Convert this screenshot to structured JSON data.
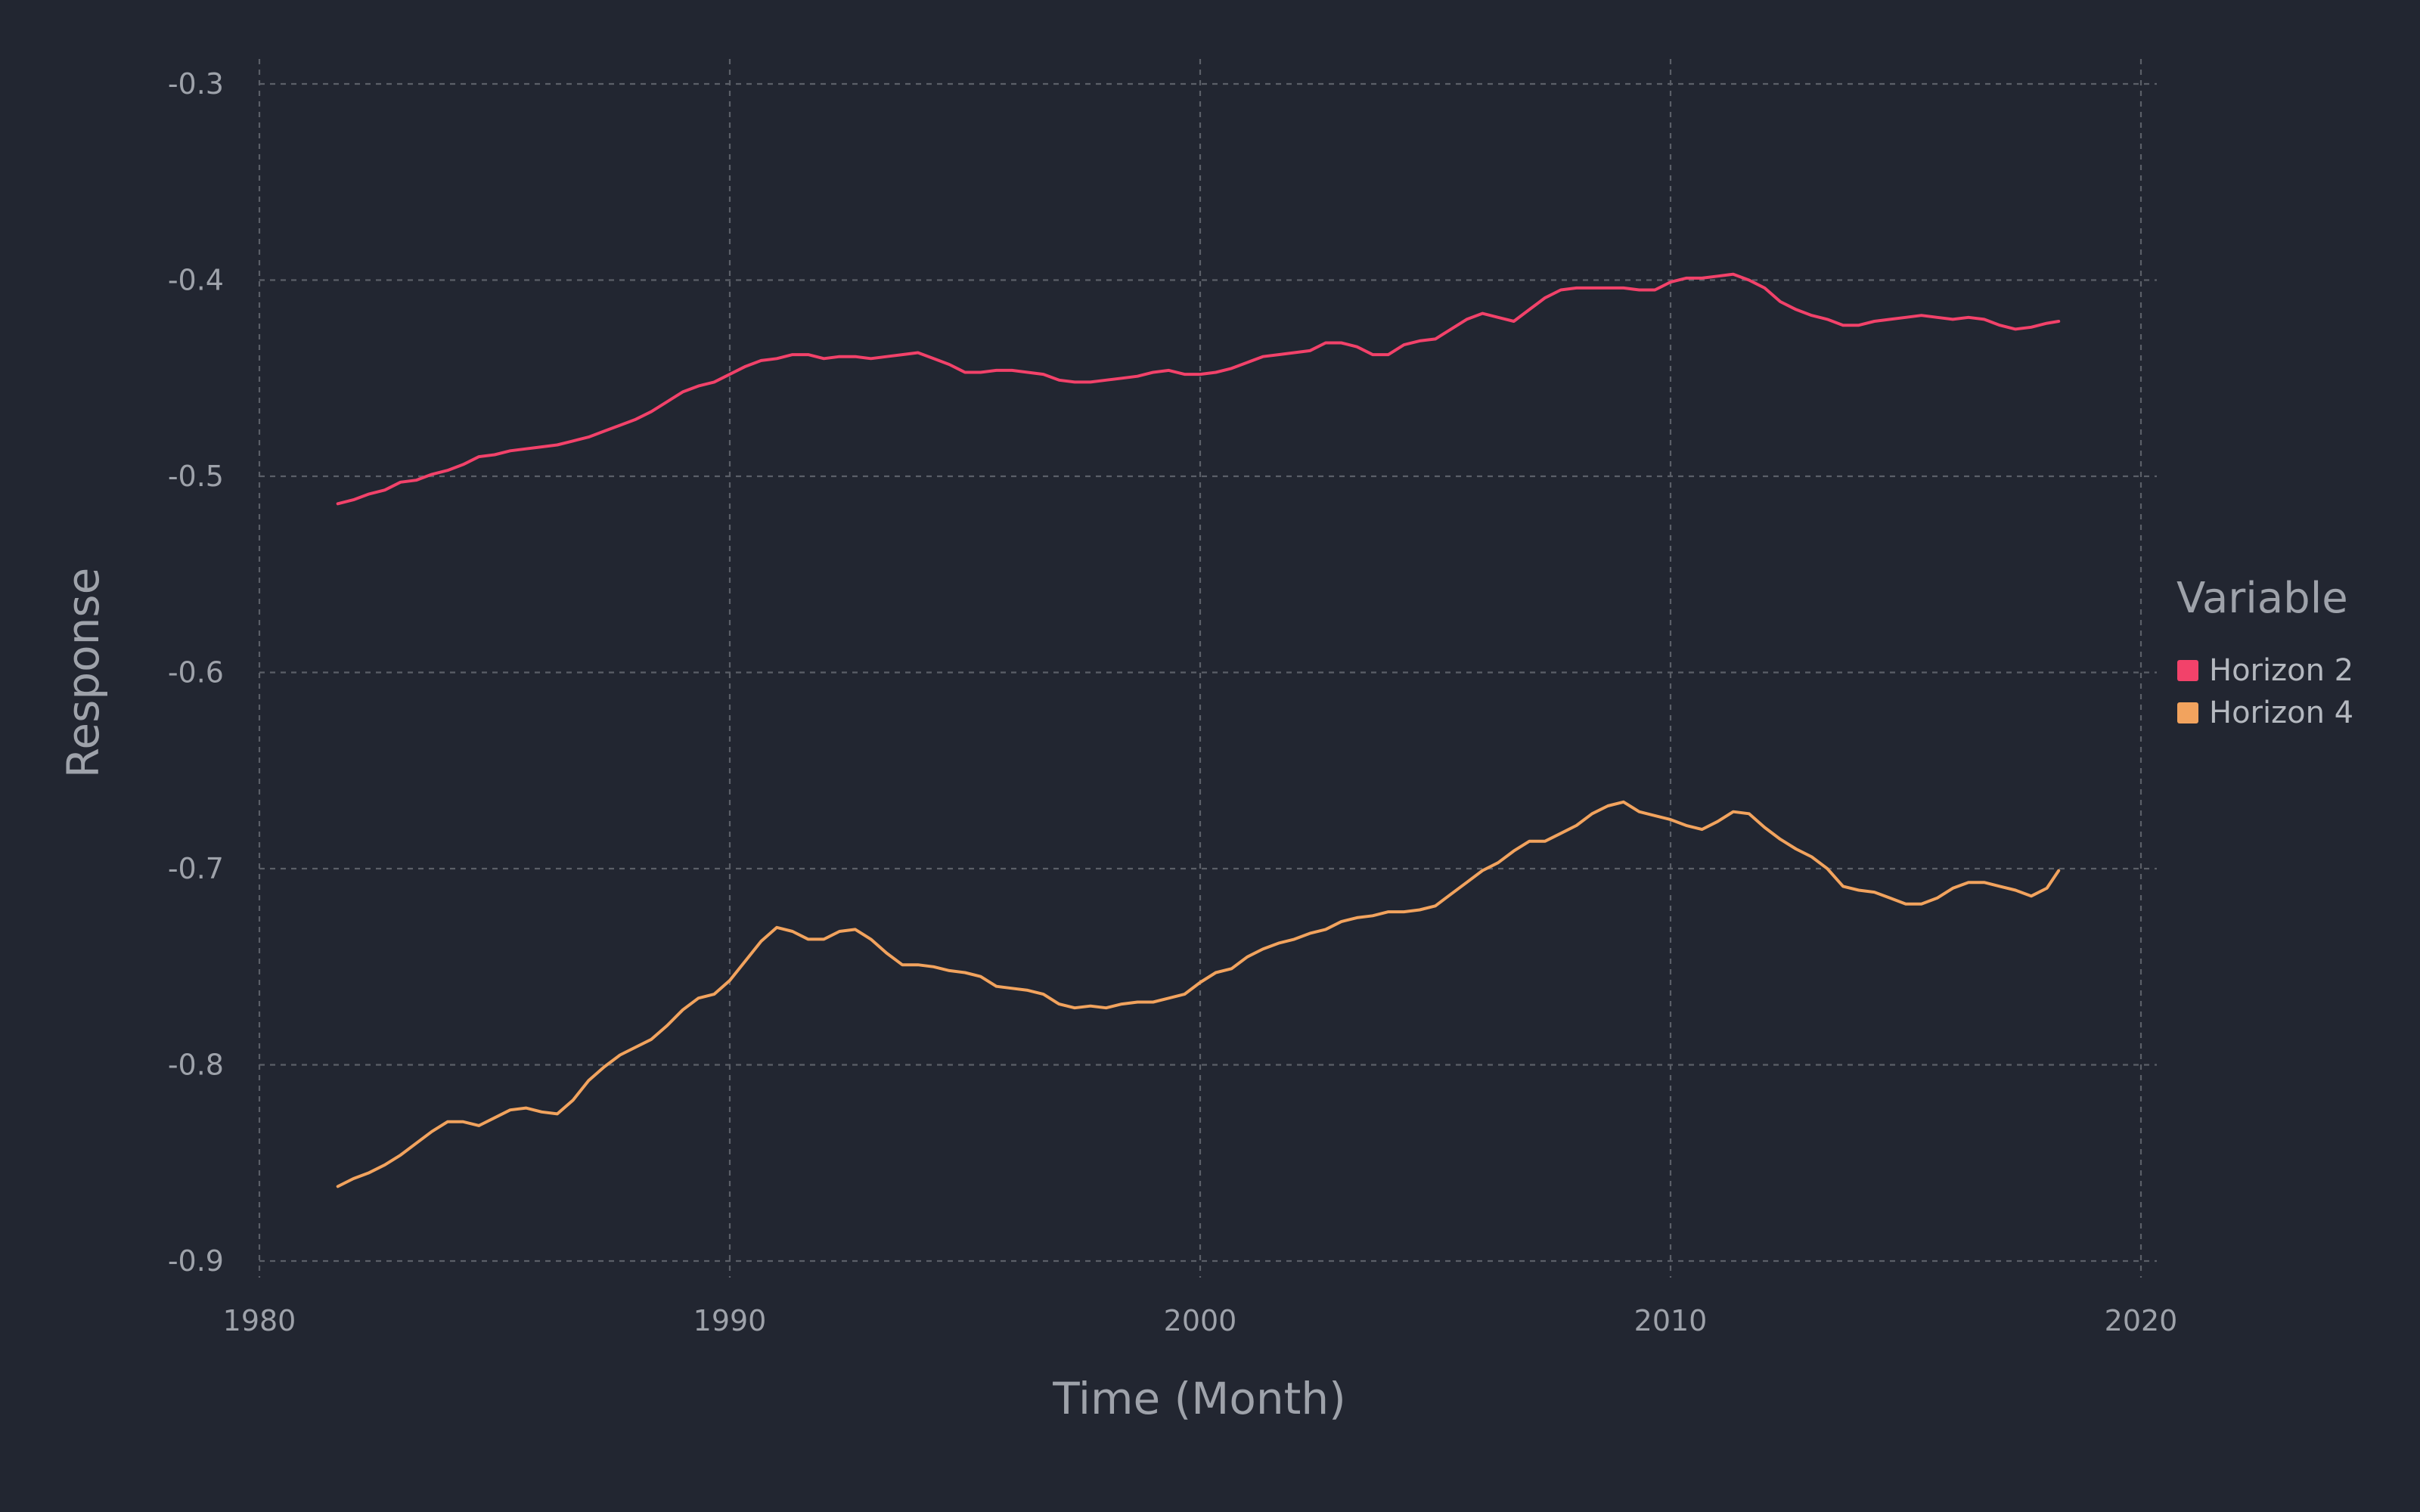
{
  "chart_data": {
    "type": "line",
    "xlabel": "Time (Month)",
    "ylabel": "Response",
    "xlim": [
      1980,
      2020
    ],
    "ylim": [
      -0.9,
      -0.3
    ],
    "x_ticks": [
      "1980",
      "1990",
      "2000",
      "2010",
      "2020"
    ],
    "y_ticks": [
      "-0.3",
      "-0.4",
      "-0.5",
      "-0.6",
      "-0.7",
      "-0.8",
      "-0.9"
    ],
    "grid": true,
    "legend": {
      "title": "Variable",
      "placement": "right"
    },
    "background": "#222631",
    "series": [
      {
        "name": "Horizon 2",
        "color": "#f2426a",
        "points": [
          [
            "1981-09",
            -0.514
          ],
          [
            "1982-01",
            -0.512
          ],
          [
            "1982-05",
            -0.509
          ],
          [
            "1982-09",
            -0.507
          ],
          [
            "1983-01",
            -0.503
          ],
          [
            "1983-05",
            -0.502
          ],
          [
            "1983-09",
            -0.499
          ],
          [
            "1984-01",
            -0.497
          ],
          [
            "1984-05",
            -0.494
          ],
          [
            "1984-09",
            -0.49
          ],
          [
            "1985-01",
            -0.489
          ],
          [
            "1985-05",
            -0.487
          ],
          [
            "1985-09",
            -0.486
          ],
          [
            "1986-01",
            -0.485
          ],
          [
            "1986-05",
            -0.484
          ],
          [
            "1986-09",
            -0.482
          ],
          [
            "1987-01",
            -0.48
          ],
          [
            "1987-05",
            -0.477
          ],
          [
            "1987-09",
            -0.474
          ],
          [
            "1988-01",
            -0.471
          ],
          [
            "1988-05",
            -0.467
          ],
          [
            "1988-09",
            -0.462
          ],
          [
            "1989-01",
            -0.457
          ],
          [
            "1989-05",
            -0.454
          ],
          [
            "1989-09",
            -0.452
          ],
          [
            "1990-01",
            -0.448
          ],
          [
            "1990-05",
            -0.444
          ],
          [
            "1990-09",
            -0.441
          ],
          [
            "1991-01",
            -0.44
          ],
          [
            "1991-05",
            -0.438
          ],
          [
            "1991-09",
            -0.438
          ],
          [
            "1992-01",
            -0.44
          ],
          [
            "1992-05",
            -0.439
          ],
          [
            "1992-09",
            -0.439
          ],
          [
            "1993-01",
            -0.44
          ],
          [
            "1993-05",
            -0.439
          ],
          [
            "1993-09",
            -0.438
          ],
          [
            "1994-01",
            -0.437
          ],
          [
            "1994-05",
            -0.44
          ],
          [
            "1994-09",
            -0.443
          ],
          [
            "1995-01",
            -0.447
          ],
          [
            "1995-05",
            -0.447
          ],
          [
            "1995-09",
            -0.446
          ],
          [
            "1996-01",
            -0.446
          ],
          [
            "1996-05",
            -0.447
          ],
          [
            "1996-09",
            -0.448
          ],
          [
            "1997-01",
            -0.451
          ],
          [
            "1997-05",
            -0.452
          ],
          [
            "1997-09",
            -0.452
          ],
          [
            "1998-01",
            -0.451
          ],
          [
            "1998-05",
            -0.45
          ],
          [
            "1998-09",
            -0.449
          ],
          [
            "1999-01",
            -0.447
          ],
          [
            "1999-05",
            -0.446
          ],
          [
            "1999-09",
            -0.448
          ],
          [
            "2000-01",
            -0.448
          ],
          [
            "2000-05",
            -0.447
          ],
          [
            "2000-09",
            -0.445
          ],
          [
            "2001-01",
            -0.442
          ],
          [
            "2001-05",
            -0.439
          ],
          [
            "2001-09",
            -0.438
          ],
          [
            "2002-01",
            -0.437
          ],
          [
            "2002-05",
            -0.436
          ],
          [
            "2002-09",
            -0.432
          ],
          [
            "2003-01",
            -0.432
          ],
          [
            "2003-05",
            -0.434
          ],
          [
            "2003-09",
            -0.438
          ],
          [
            "2004-01",
            -0.438
          ],
          [
            "2004-05",
            -0.433
          ],
          [
            "2004-09",
            -0.431
          ],
          [
            "2005-01",
            -0.43
          ],
          [
            "2005-05",
            -0.425
          ],
          [
            "2005-09",
            -0.42
          ],
          [
            "2006-01",
            -0.417
          ],
          [
            "2006-05",
            -0.419
          ],
          [
            "2006-09",
            -0.421
          ],
          [
            "2007-01",
            -0.415
          ],
          [
            "2007-05",
            -0.409
          ],
          [
            "2007-09",
            -0.405
          ],
          [
            "2008-01",
            -0.404
          ],
          [
            "2008-05",
            -0.404
          ],
          [
            "2008-09",
            -0.404
          ],
          [
            "2009-01",
            -0.404
          ],
          [
            "2009-05",
            -0.405
          ],
          [
            "2009-09",
            -0.405
          ],
          [
            "2010-01",
            -0.401
          ],
          [
            "2010-05",
            -0.399
          ],
          [
            "2010-09",
            -0.399
          ],
          [
            "2011-01",
            -0.398
          ],
          [
            "2011-05",
            -0.397
          ],
          [
            "2011-09",
            -0.4
          ],
          [
            "2012-01",
            -0.404
          ],
          [
            "2012-05",
            -0.411
          ],
          [
            "2012-09",
            -0.415
          ],
          [
            "2013-01",
            -0.418
          ],
          [
            "2013-05",
            -0.42
          ],
          [
            "2013-09",
            -0.423
          ],
          [
            "2014-01",
            -0.423
          ],
          [
            "2014-05",
            -0.421
          ],
          [
            "2014-09",
            -0.42
          ],
          [
            "2015-01",
            -0.419
          ],
          [
            "2015-05",
            -0.418
          ],
          [
            "2015-09",
            -0.419
          ],
          [
            "2016-01",
            -0.42
          ],
          [
            "2016-05",
            -0.419
          ],
          [
            "2016-09",
            -0.42
          ],
          [
            "2017-01",
            -0.423
          ],
          [
            "2017-05",
            -0.425
          ],
          [
            "2017-09",
            -0.424
          ],
          [
            "2018-01",
            -0.422
          ],
          [
            "2018-04",
            -0.421
          ]
        ]
      },
      {
        "name": "Horizon 4",
        "color": "#f2a35e",
        "points": [
          [
            "1981-09",
            -0.862
          ],
          [
            "1982-01",
            -0.858
          ],
          [
            "1982-05",
            -0.855
          ],
          [
            "1982-09",
            -0.851
          ],
          [
            "1983-01",
            -0.846
          ],
          [
            "1983-05",
            -0.84
          ],
          [
            "1983-09",
            -0.834
          ],
          [
            "1984-01",
            -0.829
          ],
          [
            "1984-05",
            -0.829
          ],
          [
            "1984-09",
            -0.831
          ],
          [
            "1985-01",
            -0.827
          ],
          [
            "1985-05",
            -0.823
          ],
          [
            "1985-09",
            -0.822
          ],
          [
            "1986-01",
            -0.824
          ],
          [
            "1986-05",
            -0.825
          ],
          [
            "1986-09",
            -0.818
          ],
          [
            "1987-01",
            -0.808
          ],
          [
            "1987-05",
            -0.801
          ],
          [
            "1987-09",
            -0.795
          ],
          [
            "1988-01",
            -0.791
          ],
          [
            "1988-05",
            -0.787
          ],
          [
            "1988-09",
            -0.78
          ],
          [
            "1989-01",
            -0.772
          ],
          [
            "1989-05",
            -0.766
          ],
          [
            "1989-09",
            -0.764
          ],
          [
            "1990-01",
            -0.757
          ],
          [
            "1990-05",
            -0.747
          ],
          [
            "1990-09",
            -0.737
          ],
          [
            "1991-01",
            -0.73
          ],
          [
            "1991-05",
            -0.732
          ],
          [
            "1991-09",
            -0.736
          ],
          [
            "1992-01",
            -0.736
          ],
          [
            "1992-05",
            -0.732
          ],
          [
            "1992-09",
            -0.731
          ],
          [
            "1993-01",
            -0.736
          ],
          [
            "1993-05",
            -0.743
          ],
          [
            "1993-09",
            -0.749
          ],
          [
            "1994-01",
            -0.749
          ],
          [
            "1994-05",
            -0.75
          ],
          [
            "1994-09",
            -0.752
          ],
          [
            "1995-01",
            -0.753
          ],
          [
            "1995-05",
            -0.755
          ],
          [
            "1995-09",
            -0.76
          ],
          [
            "1996-01",
            -0.761
          ],
          [
            "1996-05",
            -0.762
          ],
          [
            "1996-09",
            -0.764
          ],
          [
            "1997-01",
            -0.769
          ],
          [
            "1997-05",
            -0.771
          ],
          [
            "1997-09",
            -0.77
          ],
          [
            "1998-01",
            -0.771
          ],
          [
            "1998-05",
            -0.769
          ],
          [
            "1998-09",
            -0.768
          ],
          [
            "1999-01",
            -0.768
          ],
          [
            "1999-05",
            -0.766
          ],
          [
            "1999-09",
            -0.764
          ],
          [
            "2000-01",
            -0.758
          ],
          [
            "2000-05",
            -0.753
          ],
          [
            "2000-09",
            -0.751
          ],
          [
            "2001-01",
            -0.745
          ],
          [
            "2001-05",
            -0.741
          ],
          [
            "2001-09",
            -0.738
          ],
          [
            "2002-01",
            -0.736
          ],
          [
            "2002-05",
            -0.733
          ],
          [
            "2002-09",
            -0.731
          ],
          [
            "2003-01",
            -0.727
          ],
          [
            "2003-05",
            -0.725
          ],
          [
            "2003-09",
            -0.724
          ],
          [
            "2004-01",
            -0.722
          ],
          [
            "2004-05",
            -0.722
          ],
          [
            "2004-09",
            -0.721
          ],
          [
            "2005-01",
            -0.719
          ],
          [
            "2005-05",
            -0.713
          ],
          [
            "2005-09",
            -0.707
          ],
          [
            "2006-01",
            -0.701
          ],
          [
            "2006-05",
            -0.697
          ],
          [
            "2006-09",
            -0.691
          ],
          [
            "2007-01",
            -0.686
          ],
          [
            "2007-05",
            -0.686
          ],
          [
            "2007-09",
            -0.682
          ],
          [
            "2008-01",
            -0.678
          ],
          [
            "2008-05",
            -0.672
          ],
          [
            "2008-09",
            -0.668
          ],
          [
            "2009-01",
            -0.666
          ],
          [
            "2009-05",
            -0.671
          ],
          [
            "2009-09",
            -0.673
          ],
          [
            "2010-01",
            -0.675
          ],
          [
            "2010-05",
            -0.678
          ],
          [
            "2010-09",
            -0.68
          ],
          [
            "2011-01",
            -0.676
          ],
          [
            "2011-05",
            -0.671
          ],
          [
            "2011-09",
            -0.672
          ],
          [
            "2012-01",
            -0.679
          ],
          [
            "2012-05",
            -0.685
          ],
          [
            "2012-09",
            -0.69
          ],
          [
            "2013-01",
            -0.694
          ],
          [
            "2013-05",
            -0.7
          ],
          [
            "2013-09",
            -0.709
          ],
          [
            "2014-01",
            -0.711
          ],
          [
            "2014-05",
            -0.712
          ],
          [
            "2014-09",
            -0.715
          ],
          [
            "2015-01",
            -0.718
          ],
          [
            "2015-05",
            -0.718
          ],
          [
            "2015-09",
            -0.715
          ],
          [
            "2016-01",
            -0.71
          ],
          [
            "2016-05",
            -0.707
          ],
          [
            "2016-09",
            -0.707
          ],
          [
            "2017-01",
            -0.709
          ],
          [
            "2017-05",
            -0.711
          ],
          [
            "2017-09",
            -0.714
          ],
          [
            "2018-01",
            -0.71
          ],
          [
            "2018-04",
            -0.701
          ]
        ]
      }
    ]
  }
}
